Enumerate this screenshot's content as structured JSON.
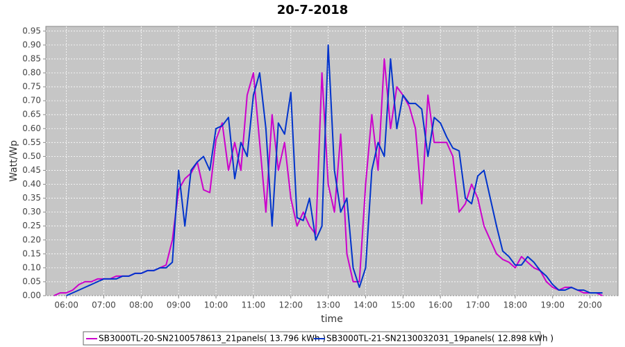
{
  "chart_data": {
    "type": "line",
    "title": "20-7-2018",
    "x_label": "time",
    "y_label": "Watt/Wp",
    "x": [
      340,
      350,
      360,
      370,
      380,
      390,
      400,
      410,
      420,
      430,
      440,
      450,
      460,
      470,
      480,
      490,
      500,
      510,
      520,
      530,
      540,
      550,
      560,
      570,
      580,
      590,
      600,
      610,
      620,
      630,
      640,
      650,
      660,
      670,
      680,
      690,
      700,
      710,
      720,
      730,
      740,
      750,
      760,
      770,
      780,
      790,
      800,
      810,
      820,
      830,
      840,
      850,
      860,
      870,
      880,
      890,
      900,
      910,
      920,
      930,
      940,
      950,
      960,
      970,
      980,
      990,
      1000,
      1010,
      1020,
      1030,
      1040,
      1050,
      1060,
      1070,
      1080,
      1090,
      1100,
      1110,
      1120,
      1130,
      1140,
      1150,
      1160,
      1170,
      1180,
      1190,
      1200,
      1210,
      1220
    ],
    "series": [
      {
        "name": "SB3000TL-20-SN2100578613_21panels( 13.796 kWh )",
        "color": "#cc00cc",
        "values": [
          0,
          0.01,
          0.01,
          0.02,
          0.04,
          0.05,
          0.05,
          0.06,
          0.06,
          0.06,
          0.07,
          0.07,
          0.07,
          0.08,
          0.08,
          0.09,
          0.09,
          0.1,
          0.11,
          0.2,
          0.38,
          0.42,
          0.44,
          0.48,
          0.38,
          0.37,
          0.56,
          0.62,
          0.45,
          0.55,
          0.45,
          0.72,
          0.8,
          0.55,
          0.3,
          0.65,
          0.45,
          0.55,
          0.35,
          0.25,
          0.3,
          0.25,
          0.22,
          0.8,
          0.4,
          0.3,
          0.58,
          0.15,
          0.05,
          0.05,
          0.4,
          0.65,
          0.45,
          0.85,
          0.6,
          0.75,
          0.72,
          0.68,
          0.6,
          0.33,
          0.72,
          0.55,
          0.55,
          0.55,
          0.5,
          0.3,
          0.33,
          0.4,
          0.35,
          0.25,
          0.2,
          0.15,
          0.13,
          0.12,
          0.1,
          0.14,
          0.12,
          0.1,
          0.09,
          0.05,
          0.03,
          0.02,
          0.03,
          0.03,
          0.02,
          0.01,
          0.01,
          0.01,
          0
        ]
      },
      {
        "name": "SB3000TL-21-SN2130032031_19panels( 12.898 kWh )",
        "color": "#0033cc",
        "values": [
          null,
          null,
          0,
          0.01,
          0.02,
          0.03,
          0.04,
          0.05,
          0.06,
          0.06,
          0.06,
          0.07,
          0.07,
          0.08,
          0.08,
          0.09,
          0.09,
          0.1,
          0.1,
          0.12,
          0.45,
          0.25,
          0.45,
          0.48,
          0.5,
          0.45,
          0.6,
          0.61,
          0.64,
          0.42,
          0.55,
          0.5,
          0.72,
          0.8,
          0.6,
          0.25,
          0.62,
          0.58,
          0.73,
          0.28,
          0.27,
          0.35,
          0.2,
          0.25,
          0.9,
          0.45,
          0.3,
          0.35,
          0.1,
          0.03,
          0.1,
          0.45,
          0.55,
          0.5,
          0.85,
          0.6,
          0.72,
          0.69,
          0.69,
          0.67,
          0.5,
          0.64,
          0.62,
          0.57,
          0.53,
          0.52,
          0.35,
          0.33,
          0.43,
          0.45,
          0.35,
          0.25,
          0.16,
          0.14,
          0.11,
          0.11,
          0.14,
          0.12,
          0.09,
          0.07,
          0.04,
          0.02,
          0.02,
          0.03,
          0.02,
          0.02,
          0.01,
          0.01,
          0.01
        ]
      }
    ],
    "xlim": [
      327,
      1245
    ],
    "xticks": [
      {
        "value": 360,
        "label": "06:00"
      },
      {
        "value": 420,
        "label": "07:00"
      },
      {
        "value": 480,
        "label": "08:00"
      },
      {
        "value": 540,
        "label": "09:00"
      },
      {
        "value": 600,
        "label": "10:00"
      },
      {
        "value": 660,
        "label": "11:00"
      },
      {
        "value": 720,
        "label": "12:00"
      },
      {
        "value": 780,
        "label": "13:00"
      },
      {
        "value": 840,
        "label": "14:00"
      },
      {
        "value": 900,
        "label": "15:00"
      },
      {
        "value": 960,
        "label": "16:00"
      },
      {
        "value": 1020,
        "label": "17:00"
      },
      {
        "value": 1080,
        "label": "18:00"
      },
      {
        "value": 1140,
        "label": "19:00"
      },
      {
        "value": 1200,
        "label": "20:00"
      }
    ],
    "ylim": [
      0,
      0.967
    ],
    "yticks": [
      {
        "value": 0,
        "label": "0.00"
      },
      0.05,
      {
        "value": 0.1,
        "label": "0.10"
      },
      0.15,
      {
        "value": 0.2,
        "label": "0.20"
      },
      0.25,
      {
        "value": 0.3,
        "label": "0.30"
      },
      0.35,
      {
        "value": 0.4,
        "label": "0.40"
      },
      0.45,
      {
        "value": 0.5,
        "label": "0.50"
      },
      0.55,
      {
        "value": 0.6,
        "label": "0.60"
      },
      0.65,
      {
        "value": 0.7,
        "label": "0.70"
      },
      0.75,
      {
        "value": 0.8,
        "label": "0.80"
      },
      0.85,
      {
        "value": 0.9,
        "label": "0.90"
      },
      0.95
    ],
    "grid": true,
    "legend": "bottom"
  }
}
